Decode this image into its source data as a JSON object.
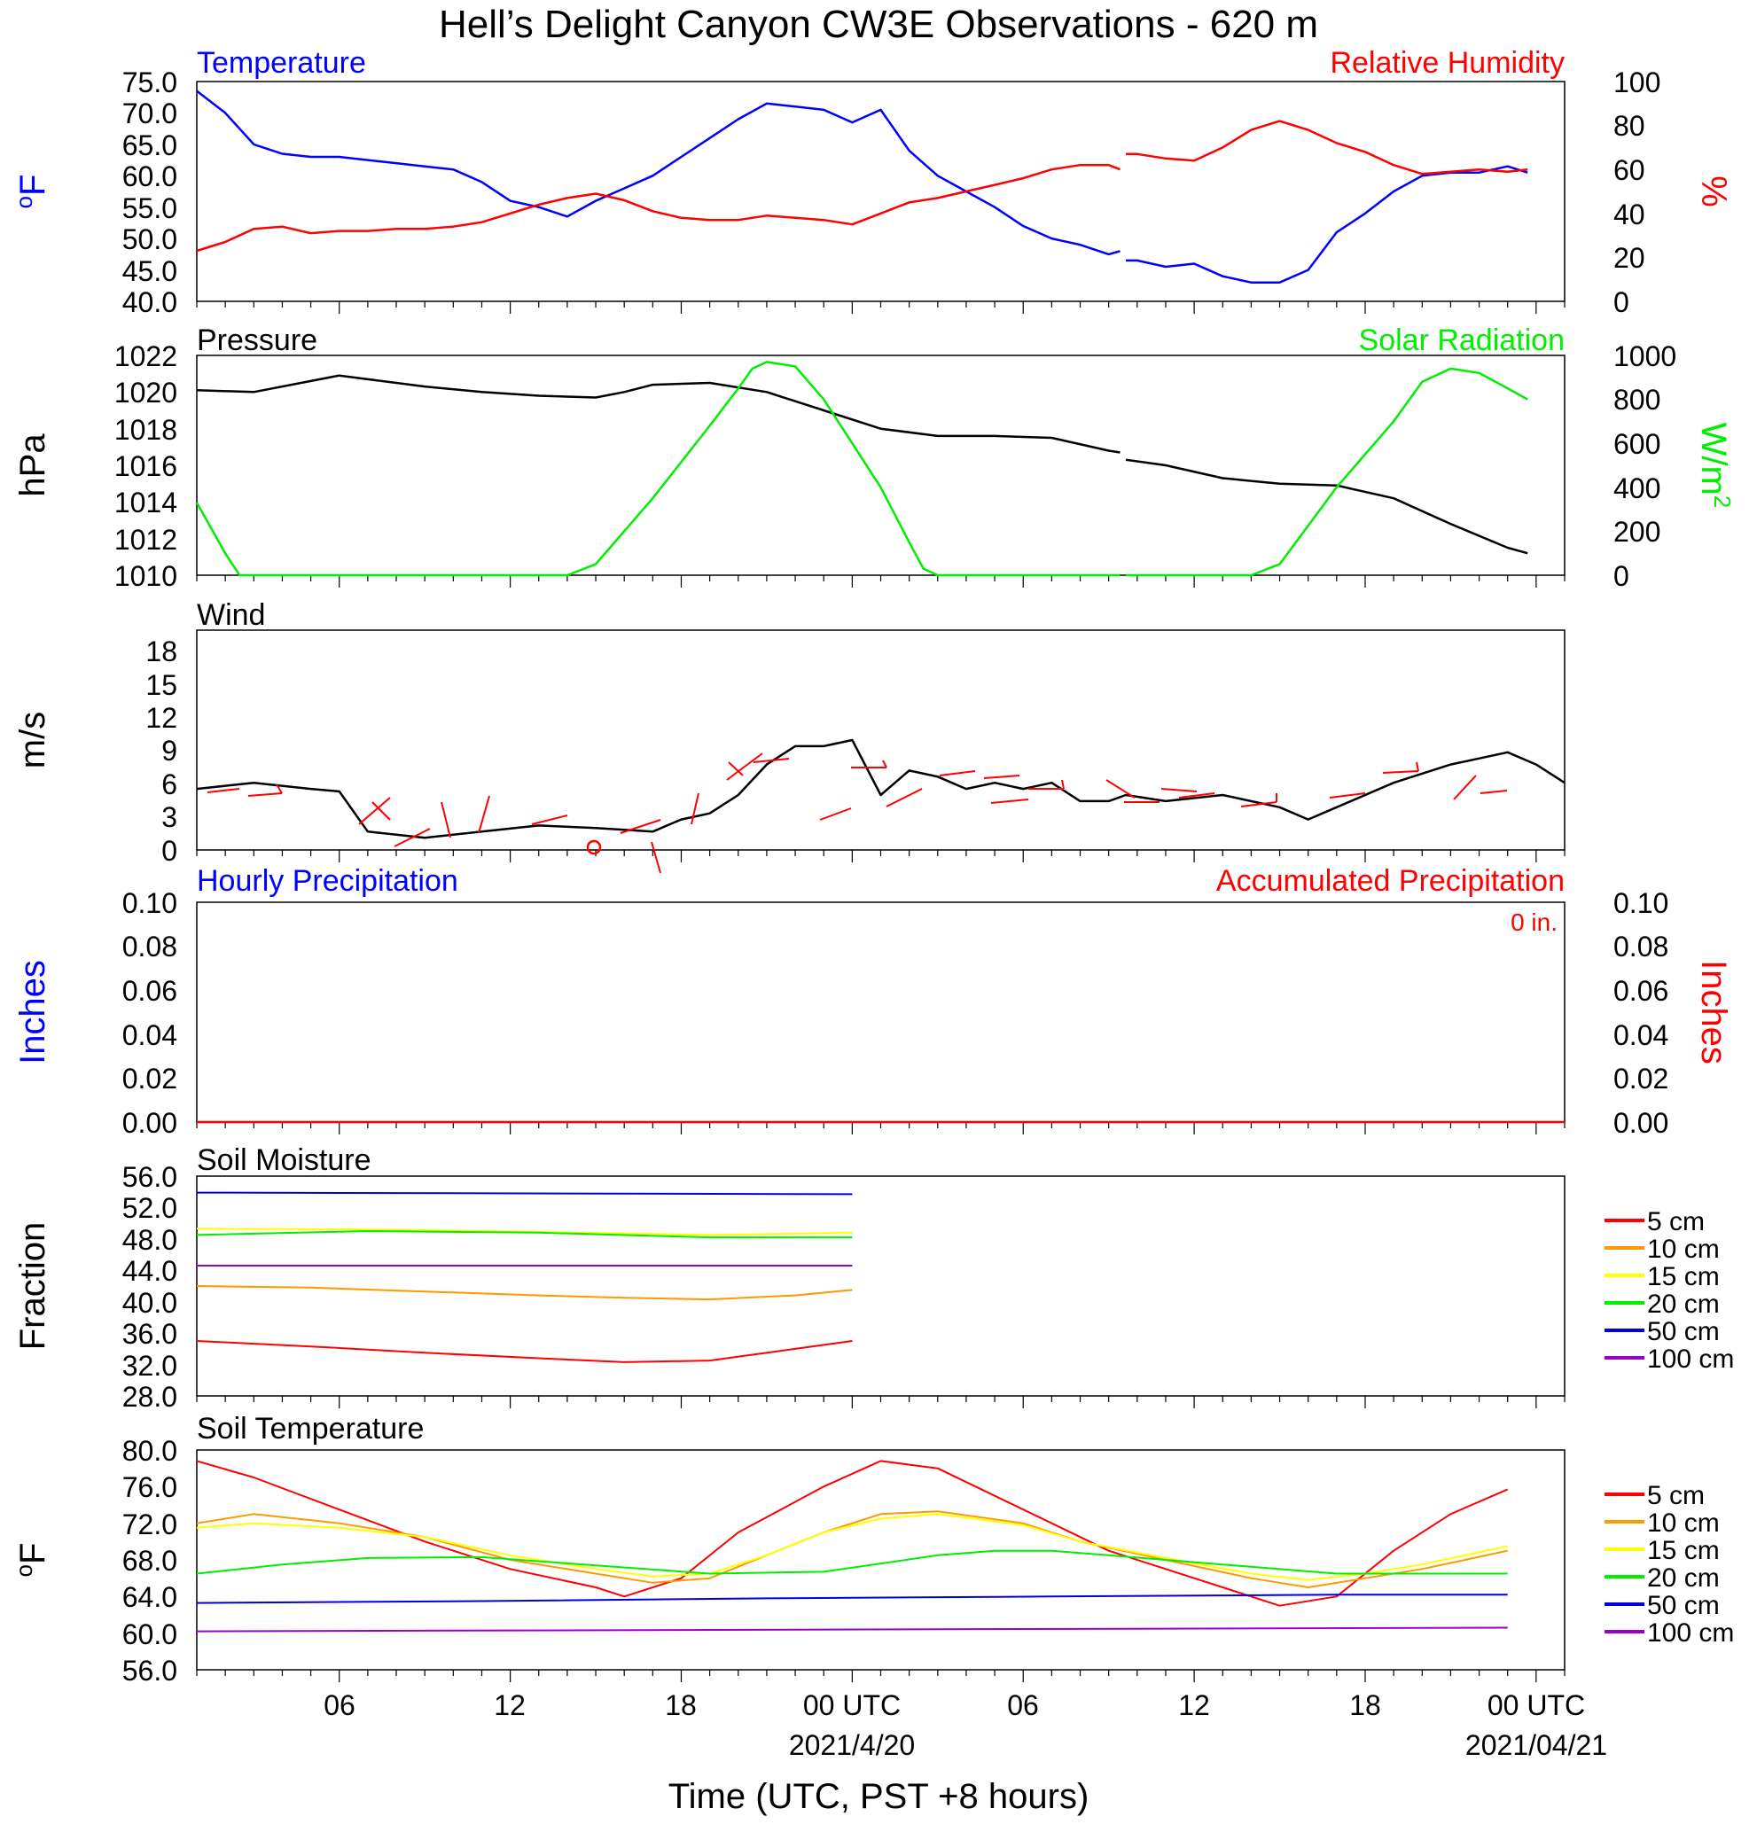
{
  "title": "Hell’s Delight Canyon CW3E Observations - 620 m",
  "x_axis": {
    "label": "Time (UTC, PST +8 hours)",
    "ticks": [
      "06",
      "12",
      "18",
      "00 UTC",
      "06",
      "12",
      "18",
      "00 UTC"
    ],
    "dates": [
      "2021/4/20",
      "2021/04/21"
    ]
  },
  "panels": {
    "temp_rh": {
      "left_title": "Temperature",
      "right_title": "Relative Humidity",
      "left_unit": "oF",
      "right_unit": "%",
      "left_ticks": [
        "75.0",
        "70.0",
        "65.0",
        "60.0",
        "55.0",
        "50.0",
        "45.0",
        "40.0"
      ],
      "right_ticks": [
        "100",
        "80",
        "60",
        "40",
        "20",
        "0"
      ],
      "left_color": "#0000ff",
      "right_color": "#ff0000"
    },
    "pressure_solar": {
      "left_title": "Pressure",
      "right_title": "Solar Radiation",
      "left_unit": "hPa",
      "right_unit": "W/m2",
      "left_ticks": [
        "1022",
        "1020",
        "1018",
        "1016",
        "1014",
        "1012",
        "1010"
      ],
      "right_ticks": [
        "1000",
        "800",
        "600",
        "400",
        "200",
        "0"
      ],
      "left_color": "#000000",
      "right_color": "#00ee00"
    },
    "wind": {
      "title": "Wind",
      "unit": "m/s",
      "ticks": [
        "18",
        "15",
        "12",
        "9",
        "6",
        "3",
        "0"
      ]
    },
    "precip": {
      "left_title": "Hourly Precipitation",
      "right_title": "Accumulated Precipitation",
      "total_label": "0 in.",
      "left_unit": "Inches",
      "right_unit": "Inches",
      "left_ticks": [
        "0.10",
        "0.08",
        "0.06",
        "0.04",
        "0.02",
        "0.00"
      ],
      "right_ticks": [
        "0.10",
        "0.08",
        "0.06",
        "0.04",
        "0.02",
        "0.00"
      ]
    },
    "soil_moisture": {
      "title": "Soil Moisture",
      "unit": "Fraction",
      "ticks": [
        "56.0",
        "52.0",
        "48.0",
        "44.0",
        "40.0",
        "36.0",
        "32.0",
        "28.0"
      ]
    },
    "soil_temp": {
      "title": "Soil Temperature",
      "unit": "oF",
      "ticks": [
        "80.0",
        "76.0",
        "72.0",
        "68.0",
        "64.0",
        "60.0",
        "56.0"
      ]
    }
  },
  "legend": [
    {
      "label": "5 cm",
      "color": "#ff0000"
    },
    {
      "label": "10 cm",
      "color": "#ff9900"
    },
    {
      "label": "15 cm",
      "color": "#ffff00"
    },
    {
      "label": "20 cm",
      "color": "#00ee00"
    },
    {
      "label": "50 cm",
      "color": "#0000dd"
    },
    {
      "label": "100 cm",
      "color": "#9900cc"
    }
  ],
  "chart_data": [
    {
      "type": "line",
      "title": "Temperature / Relative Humidity",
      "x_unit": "hours since 2021-04-19 01 UTC",
      "xlim": [
        0,
        48
      ],
      "ylim": [
        40,
        75
      ],
      "y2lim": [
        0,
        100
      ],
      "series": [
        {
          "name": "Temperature",
          "axis": "left",
          "color": "#0000ff",
          "x": [
            0,
            1,
            2,
            3,
            4,
            5,
            6,
            7,
            8,
            9,
            10,
            11,
            12,
            13,
            14,
            15,
            16,
            17,
            18,
            19,
            20,
            21,
            22,
            23,
            24,
            25,
            26,
            27,
            28,
            29,
            30,
            31,
            32,
            32.4,
            32.6,
            33,
            34,
            35,
            36,
            37,
            38,
            39,
            40,
            41,
            42,
            43,
            44,
            45,
            46,
            46.7
          ],
          "y": [
            73.5,
            70,
            65,
            63.5,
            63,
            63,
            62.5,
            62,
            61.5,
            61,
            59,
            56,
            55,
            53.5,
            56,
            58,
            60,
            63,
            66,
            69,
            71.5,
            71,
            70.5,
            68.5,
            70.5,
            64,
            60,
            57.5,
            55,
            52,
            50,
            49,
            47.5,
            48,
            46.5,
            46.5,
            45.5,
            46,
            44,
            43,
            43,
            45,
            51,
            54,
            57.5,
            60,
            60.5,
            60.5,
            61.5,
            60.5
          ]
        },
        {
          "name": "Relative Humidity",
          "axis": "right",
          "color": "#ff0000",
          "x": [
            0,
            1,
            2,
            3,
            4,
            5,
            6,
            7,
            8,
            9,
            10,
            11,
            12,
            13,
            14,
            15,
            16,
            17,
            18,
            19,
            20,
            21,
            22,
            23,
            24,
            25,
            26,
            27,
            28,
            29,
            30,
            31,
            32,
            32.4,
            32.6,
            33,
            34,
            35,
            36,
            37,
            38,
            39,
            40,
            41,
            42,
            43,
            44,
            45,
            46,
            46.7
          ],
          "y": [
            23,
            27,
            33,
            34,
            31,
            32,
            32,
            33,
            33,
            34,
            36,
            40,
            44,
            47,
            49,
            46,
            41,
            38,
            37,
            37,
            39,
            38,
            37,
            35,
            40,
            45,
            47,
            50,
            53,
            56,
            60,
            62,
            62,
            60,
            67,
            67,
            65,
            64,
            70,
            78,
            82,
            78,
            72,
            68,
            62,
            58,
            59,
            60,
            59,
            60
          ]
        }
      ]
    },
    {
      "type": "line",
      "title": "Pressure / Solar Radiation",
      "x_unit": "hours since 2021-04-19 01 UTC",
      "xlim": [
        0,
        48
      ],
      "ylim": [
        1010,
        1022
      ],
      "y2lim": [
        0,
        1000
      ],
      "series": [
        {
          "name": "Pressure",
          "axis": "left",
          "color": "#000000",
          "x": [
            0,
            2,
            4,
            5,
            8,
            10,
            12,
            14,
            15,
            16,
            18,
            20,
            22,
            24,
            26,
            28,
            30,
            32,
            32.4,
            32.6,
            34,
            36,
            38,
            40,
            42,
            44,
            46,
            46.7
          ],
          "y": [
            1020.1,
            1020,
            1020.6,
            1020.9,
            1020.3,
            1020,
            1019.8,
            1019.7,
            1020,
            1020.4,
            1020.5,
            1020,
            1019,
            1018,
            1017.6,
            1017.6,
            1017.5,
            1016.8,
            1016.7,
            1016.3,
            1016,
            1015.3,
            1015,
            1014.9,
            1014.2,
            1012.8,
            1011.5,
            1011.2
          ]
        },
        {
          "name": "Solar Radiation",
          "axis": "right",
          "color": "#00ee00",
          "x": [
            0,
            1,
            1.5,
            13,
            14,
            16,
            18,
            19,
            19.5,
            20,
            21,
            22,
            23,
            24,
            25,
            25.5,
            26,
            32.4,
            32.6,
            37,
            38,
            40,
            42,
            43,
            44,
            45,
            46,
            46.7
          ],
          "y": [
            330,
            100,
            0,
            0,
            50,
            350,
            680,
            850,
            940,
            970,
            950,
            800,
            600,
            400,
            150,
            30,
            0,
            0,
            0,
            0,
            50,
            400,
            700,
            880,
            940,
            920,
            850,
            800
          ]
        }
      ]
    },
    {
      "type": "line",
      "title": "Wind",
      "x_unit": "hours since 2021-04-19 01 UTC",
      "xlim": [
        0,
        48
      ],
      "ylim": [
        0,
        18
      ],
      "series": [
        {
          "name": "Wind",
          "color": "#000000",
          "x": [
            0,
            2,
            4,
            5,
            6,
            8,
            10,
            12,
            14,
            16,
            17,
            18,
            19,
            20,
            21,
            22,
            23,
            24,
            25,
            26,
            27,
            28,
            29,
            30,
            31,
            32,
            32.6,
            34,
            36,
            38,
            39,
            40,
            42,
            44,
            46,
            47,
            48
          ],
          "y": [
            5,
            5.5,
            5,
            4.8,
            1.5,
            1,
            1.5,
            2,
            1.8,
            1.5,
            2.5,
            3,
            4.5,
            7,
            8.5,
            8.5,
            9,
            4.5,
            6.5,
            6,
            5,
            5.5,
            5,
            5.5,
            4,
            4,
            4.5,
            4,
            4.5,
            3.5,
            2.5,
            3.5,
            5.5,
            7,
            8,
            7,
            5.5
          ]
        }
      ]
    },
    {
      "type": "line",
      "title": "Hourly Precipitation / Accumulated Precipitation",
      "xlim": [
        0,
        48
      ],
      "ylim": [
        0,
        0.1
      ],
      "series": [
        {
          "name": "Accumulated Precipitation",
          "color": "#ff0000",
          "x": [
            0,
            48
          ],
          "y": [
            0,
            0
          ]
        }
      ]
    },
    {
      "type": "line",
      "title": "Soil Moisture",
      "x_unit": "hours since 2021-04-19 01 UTC",
      "xlim": [
        0,
        48
      ],
      "ylim": [
        28,
        56
      ],
      "series": [
        {
          "name": "5 cm",
          "color": "#ff0000",
          "x": [
            0,
            4,
            8,
            12,
            15,
            18,
            21,
            23
          ],
          "y": [
            35,
            34.3,
            33.5,
            32.8,
            32.3,
            32.5,
            34,
            35
          ]
        },
        {
          "name": "10 cm",
          "color": "#ff9900",
          "x": [
            0,
            4,
            8,
            12,
            15,
            18,
            21,
            23
          ],
          "y": [
            42,
            41.8,
            41.3,
            40.8,
            40.5,
            40.3,
            40.8,
            41.5
          ]
        },
        {
          "name": "15 cm",
          "color": "#ffff00",
          "x": [
            0,
            6,
            12,
            18,
            23
          ],
          "y": [
            49.3,
            49.2,
            48.9,
            48.5,
            48.8
          ]
        },
        {
          "name": "20 cm",
          "color": "#00ee00",
          "x": [
            0,
            6,
            12,
            18,
            23
          ],
          "y": [
            48.5,
            49,
            48.8,
            48.2,
            48.2
          ]
        },
        {
          "name": "50 cm",
          "color": "#0000dd",
          "x": [
            0,
            23
          ],
          "y": [
            53.9,
            53.7
          ]
        },
        {
          "name": "100 cm",
          "color": "#9900cc",
          "x": [
            0,
            23
          ],
          "y": [
            44.6,
            44.6
          ]
        }
      ]
    },
    {
      "type": "line",
      "title": "Soil Temperature",
      "x_unit": "hours since 2021-04-19 01 UTC",
      "xlim": [
        0,
        48
      ],
      "ylim": [
        56,
        80
      ],
      "series": [
        {
          "name": "5 cm",
          "color": "#ff0000",
          "x": [
            0,
            2,
            5,
            8,
            11,
            14,
            15,
            17,
            19,
            22,
            24,
            26,
            28,
            30,
            32,
            34,
            36,
            38,
            40,
            42,
            44,
            46
          ],
          "y": [
            78.8,
            77,
            73.5,
            70,
            67,
            65,
            64,
            66,
            71,
            76,
            78.8,
            78,
            75,
            72,
            69,
            67,
            65,
            63,
            64,
            69,
            73,
            75.7
          ]
        },
        {
          "name": "10 cm",
          "color": "#ff9900",
          "x": [
            0,
            2,
            5,
            8,
            11,
            14,
            16,
            18,
            20,
            22,
            24,
            26,
            29,
            31,
            34,
            37,
            39,
            41,
            43,
            46
          ],
          "y": [
            72,
            73,
            72,
            70.5,
            68,
            66.5,
            65.5,
            66,
            68.5,
            71,
            73,
            73.3,
            72,
            70,
            68,
            66,
            65,
            66,
            67,
            69
          ]
        },
        {
          "name": "15 cm",
          "color": "#ffff00",
          "x": [
            0,
            2,
            5,
            8,
            11,
            14,
            16,
            18,
            20,
            22,
            24,
            26,
            29,
            31,
            34,
            37,
            39,
            41,
            43,
            46
          ],
          "y": [
            71.5,
            72,
            71.5,
            70.5,
            68.5,
            67,
            66.2,
            66.5,
            68.5,
            71,
            72.5,
            73,
            71.8,
            70,
            68.2,
            66.5,
            65.8,
            66.5,
            67.5,
            69.5
          ]
        },
        {
          "name": "20 cm",
          "color": "#00ee00",
          "x": [
            0,
            3,
            6,
            10,
            14,
            18,
            22,
            26,
            28,
            30,
            32,
            36,
            40,
            46
          ],
          "y": [
            66.5,
            67.5,
            68.2,
            68.3,
            67.4,
            66.5,
            66.7,
            68.5,
            69,
            69,
            68.5,
            67.5,
            66.5,
            66.5
          ]
        },
        {
          "name": "50 cm",
          "color": "#0000dd",
          "x": [
            0,
            10,
            20,
            30,
            40,
            46
          ],
          "y": [
            63.3,
            63.5,
            63.8,
            64,
            64.2,
            64.2
          ]
        },
        {
          "name": "100 cm",
          "color": "#9900cc",
          "x": [
            0,
            46
          ],
          "y": [
            60.2,
            60.6
          ]
        }
      ]
    }
  ]
}
